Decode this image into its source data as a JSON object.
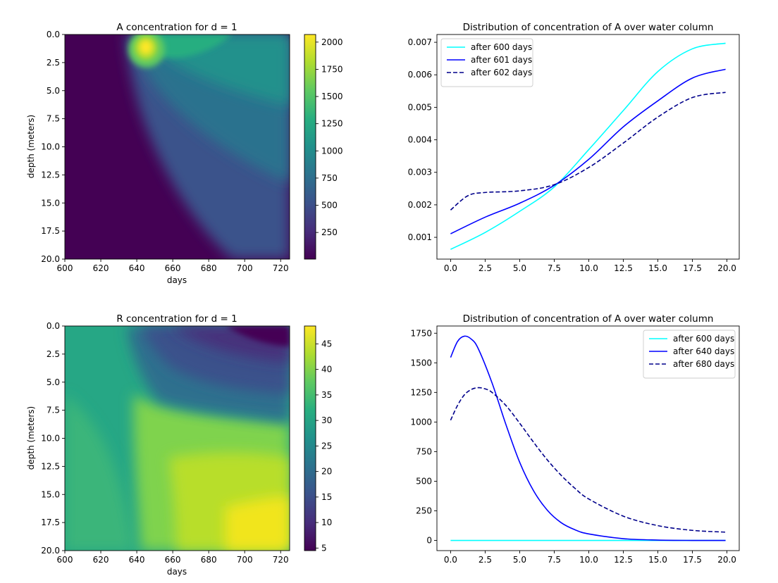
{
  "chart_data": [
    {
      "id": "hm-a",
      "type": "heatmap",
      "title": "A concentration for d = 1",
      "xlabel": "days",
      "ylabel": "depth (meters)",
      "xlim": [
        600,
        725
      ],
      "ylim": [
        20,
        0
      ],
      "xticks": [
        600,
        620,
        640,
        660,
        680,
        700,
        720
      ],
      "yticks": [
        0.0,
        2.5,
        5.0,
        7.5,
        10.0,
        12.5,
        15.0,
        17.5,
        20.0
      ],
      "colormap": "viridis",
      "colorbar": {
        "min": 5,
        "max": 2070,
        "ticks": [
          250,
          500,
          750,
          1000,
          1250,
          1500,
          1750,
          2000
        ]
      },
      "description_points": [
        {
          "day": 600,
          "depth": 0,
          "value": 5
        },
        {
          "day": 645,
          "depth": 1.5,
          "value": 2070
        },
        {
          "day": 700,
          "depth": 2,
          "value": 1050
        },
        {
          "day": 725,
          "depth": 2,
          "value": 980
        },
        {
          "day": 700,
          "depth": 10,
          "value": 360
        },
        {
          "day": 720,
          "depth": 20,
          "value": 150
        }
      ]
    },
    {
      "id": "ln-a",
      "type": "line",
      "title": "Distribution of concentration of A over water column",
      "xlabel": "",
      "ylabel": "",
      "xlim": [
        -0.99,
        20.89
      ],
      "ylim": [
        0.00033,
        0.00724
      ],
      "xticks": [
        0.0,
        2.5,
        5.0,
        7.5,
        10.0,
        12.5,
        15.0,
        17.5,
        20.0
      ],
      "yticks": [
        0.001,
        0.002,
        0.003,
        0.004,
        0.005,
        0.006,
        0.007
      ],
      "legend": "top-left",
      "series": [
        {
          "name": "after 600 days",
          "color": "#00ffff",
          "dash": "solid",
          "x": [
            0,
            2.5,
            5,
            7.5,
            10,
            12.5,
            15,
            17.5,
            19.9
          ],
          "y": [
            0.00063,
            0.00115,
            0.0018,
            0.00255,
            0.0037,
            0.0049,
            0.0061,
            0.0068,
            0.00697
          ]
        },
        {
          "name": "after 601 days",
          "color": "#0000ff",
          "dash": "solid",
          "x": [
            0,
            2.5,
            5,
            7.5,
            10,
            12.5,
            15,
            17.5,
            19.9
          ],
          "y": [
            0.00111,
            0.00162,
            0.00205,
            0.0026,
            0.0034,
            0.0044,
            0.0052,
            0.0059,
            0.00617
          ]
        },
        {
          "name": "after 602 days",
          "color": "#00008b",
          "dash": "dashed",
          "x": [
            0,
            1.25,
            2.5,
            5,
            7.5,
            10,
            12.5,
            15,
            17.5,
            19.9
          ],
          "y": [
            0.00184,
            0.00228,
            0.00238,
            0.00243,
            0.00262,
            0.00315,
            0.0039,
            0.0047,
            0.0053,
            0.00546
          ]
        }
      ]
    },
    {
      "id": "hm-r",
      "type": "heatmap",
      "title": "R concentration for d = 1",
      "xlabel": "days",
      "ylabel": "depth (meters)",
      "xlim": [
        600,
        725
      ],
      "ylim": [
        20,
        0
      ],
      "xticks": [
        600,
        620,
        640,
        660,
        680,
        700,
        720
      ],
      "yticks": [
        0.0,
        2.5,
        5.0,
        7.5,
        10.0,
        12.5,
        15.0,
        17.5,
        20.0
      ],
      "colormap": "viridis",
      "colorbar": {
        "min": 4.5,
        "max": 48.5,
        "ticks": [
          5,
          10,
          15,
          20,
          25,
          30,
          35,
          40,
          45
        ]
      },
      "description_points": [
        {
          "day": 600,
          "depth": 0,
          "value": 28
        },
        {
          "day": 600,
          "depth": 20,
          "value": 36
        },
        {
          "day": 720,
          "depth": 0,
          "value": 5
        },
        {
          "day": 720,
          "depth": 5,
          "value": 14
        },
        {
          "day": 720,
          "depth": 10,
          "value": 42
        },
        {
          "day": 720,
          "depth": 20,
          "value": 48
        }
      ]
    },
    {
      "id": "ln-b",
      "type": "line",
      "title": "Distribution of concentration of A over water column",
      "xlabel": "",
      "ylabel": "",
      "xlim": [
        -0.99,
        20.89
      ],
      "ylim": [
        -86,
        1811
      ],
      "xticks": [
        0.0,
        2.5,
        5.0,
        7.5,
        10.0,
        12.5,
        15.0,
        17.5,
        20.0
      ],
      "yticks": [
        0,
        250,
        500,
        750,
        1000,
        1250,
        1500,
        1750
      ],
      "legend": "top-right",
      "series": [
        {
          "name": "after 600 days",
          "color": "#00ffff",
          "dash": "solid",
          "x": [
            0,
            5,
            10,
            15,
            19.9
          ],
          "y": [
            0,
            0,
            0,
            0,
            0
          ]
        },
        {
          "name": "after 640 days",
          "color": "#0000ff",
          "dash": "solid",
          "x": [
            0,
            0.5,
            1,
            1.5,
            2,
            3,
            4,
            5,
            6,
            7,
            8,
            9,
            10,
            12.5,
            15,
            17.5,
            19.9
          ],
          "y": [
            1545,
            1680,
            1725,
            1700,
            1620,
            1330,
            980,
            660,
            420,
            255,
            150,
            90,
            55,
            15,
            3,
            0,
            0
          ]
        },
        {
          "name": "after 680 days",
          "color": "#00008b",
          "dash": "dashed",
          "x": [
            0,
            0.5,
            1,
            1.5,
            2,
            2.5,
            3,
            4,
            5,
            6,
            7,
            8,
            9,
            10,
            12.5,
            15,
            17.5,
            19.9
          ],
          "y": [
            1015,
            1140,
            1230,
            1275,
            1290,
            1280,
            1250,
            1140,
            990,
            830,
            680,
            550,
            440,
            350,
            205,
            125,
            85,
            70
          ]
        }
      ]
    }
  ]
}
